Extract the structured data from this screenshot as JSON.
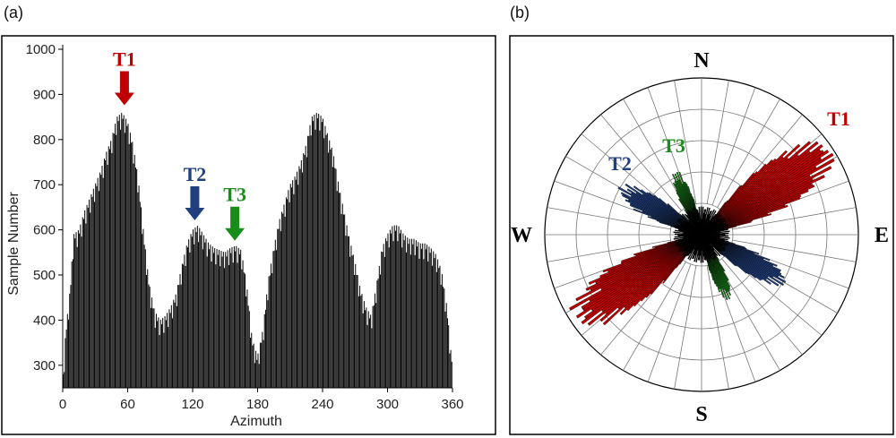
{
  "panels": {
    "a_label": "(a)",
    "b_label": "(b)"
  },
  "colors": {
    "T1": "#c00000",
    "T2": "#1f3f7f",
    "T3": "#1a8c1a",
    "bars": "#000000",
    "frame": "#000000",
    "grid": "#777777"
  },
  "chart_data": [
    {
      "type": "bar",
      "xlabel": "Azimuth",
      "ylabel": "Sample Number",
      "xlim": [
        0,
        360
      ],
      "ylim": [
        250,
        1000
      ],
      "x_ticks": [
        "0",
        "60",
        "120",
        "180",
        "240",
        "300",
        "360"
      ],
      "y_ticks": [
        "300",
        "400",
        "500",
        "600",
        "700",
        "800",
        "900",
        "1000"
      ],
      "bin_width": 1,
      "peaks": [
        [
          0,
          260
        ],
        [
          3,
          380
        ],
        [
          7,
          470
        ],
        [
          10,
          590
        ],
        [
          15,
          600
        ],
        [
          20,
          640
        ],
        [
          25,
          670
        ],
        [
          30,
          700
        ],
        [
          35,
          730
        ],
        [
          40,
          770
        ],
        [
          45,
          800
        ],
        [
          50,
          850
        ],
        [
          55,
          860
        ],
        [
          60,
          840
        ],
        [
          65,
          790
        ],
        [
          70,
          710
        ],
        [
          75,
          590
        ],
        [
          80,
          480
        ],
        [
          85,
          420
        ],
        [
          90,
          400
        ],
        [
          95,
          410
        ],
        [
          100,
          430
        ],
        [
          105,
          460
        ],
        [
          110,
          520
        ],
        [
          115,
          570
        ],
        [
          120,
          600
        ],
        [
          125,
          610
        ],
        [
          130,
          590
        ],
        [
          135,
          570
        ],
        [
          140,
          560
        ],
        [
          145,
          555
        ],
        [
          150,
          550
        ],
        [
          155,
          560
        ],
        [
          160,
          565
        ],
        [
          165,
          555
        ],
        [
          170,
          480
        ],
        [
          175,
          360
        ],
        [
          180,
          320
        ],
        [
          185,
          380
        ],
        [
          190,
          490
        ],
        [
          195,
          560
        ],
        [
          200,
          620
        ],
        [
          205,
          660
        ],
        [
          210,
          700
        ],
        [
          215,
          720
        ],
        [
          220,
          750
        ],
        [
          225,
          790
        ],
        [
          230,
          850
        ],
        [
          235,
          860
        ],
        [
          240,
          850
        ],
        [
          245,
          810
        ],
        [
          250,
          770
        ],
        [
          255,
          700
        ],
        [
          260,
          640
        ],
        [
          265,
          580
        ],
        [
          270,
          530
        ],
        [
          275,
          470
        ],
        [
          280,
          430
        ],
        [
          285,
          410
        ],
        [
          290,
          480
        ],
        [
          295,
          560
        ],
        [
          300,
          590
        ],
        [
          305,
          610
        ],
        [
          310,
          610
        ],
        [
          315,
          590
        ],
        [
          320,
          580
        ],
        [
          325,
          580
        ],
        [
          330,
          570
        ],
        [
          335,
          570
        ],
        [
          340,
          560
        ],
        [
          345,
          545
        ],
        [
          350,
          510
        ],
        [
          355,
          430
        ],
        [
          359,
          320
        ]
      ],
      "annotations": [
        {
          "text": "T1",
          "azimuth": 57,
          "value": 870,
          "color": "#c00000"
        },
        {
          "text": "T2",
          "azimuth": 122,
          "value": 615,
          "color": "#1f3f7f"
        },
        {
          "text": "T3",
          "azimuth": 159,
          "value": 570,
          "color": "#1a8c1a"
        }
      ]
    },
    {
      "type": "rose",
      "directions": [
        "N",
        "E",
        "S",
        "W"
      ],
      "rings": 5,
      "sector_step_deg": 10,
      "series": [
        {
          "name": "T1",
          "color": "#c00000",
          "azimuth_range": [
            40,
            72
          ],
          "max_len": 1.0
        },
        {
          "name": "T2",
          "color": "#1f3f7f",
          "azimuth_range": [
            108,
            130
          ],
          "max_len": 0.62
        },
        {
          "name": "T3",
          "color": "#1a8c1a",
          "azimuth_range": [
            148,
            165
          ],
          "max_len": 0.45
        }
      ],
      "labels": [
        {
          "text": "T1",
          "color": "#c00000"
        },
        {
          "text": "T2",
          "color": "#1f3f7f"
        },
        {
          "text": "T3",
          "color": "#1a8c1a"
        }
      ]
    }
  ]
}
